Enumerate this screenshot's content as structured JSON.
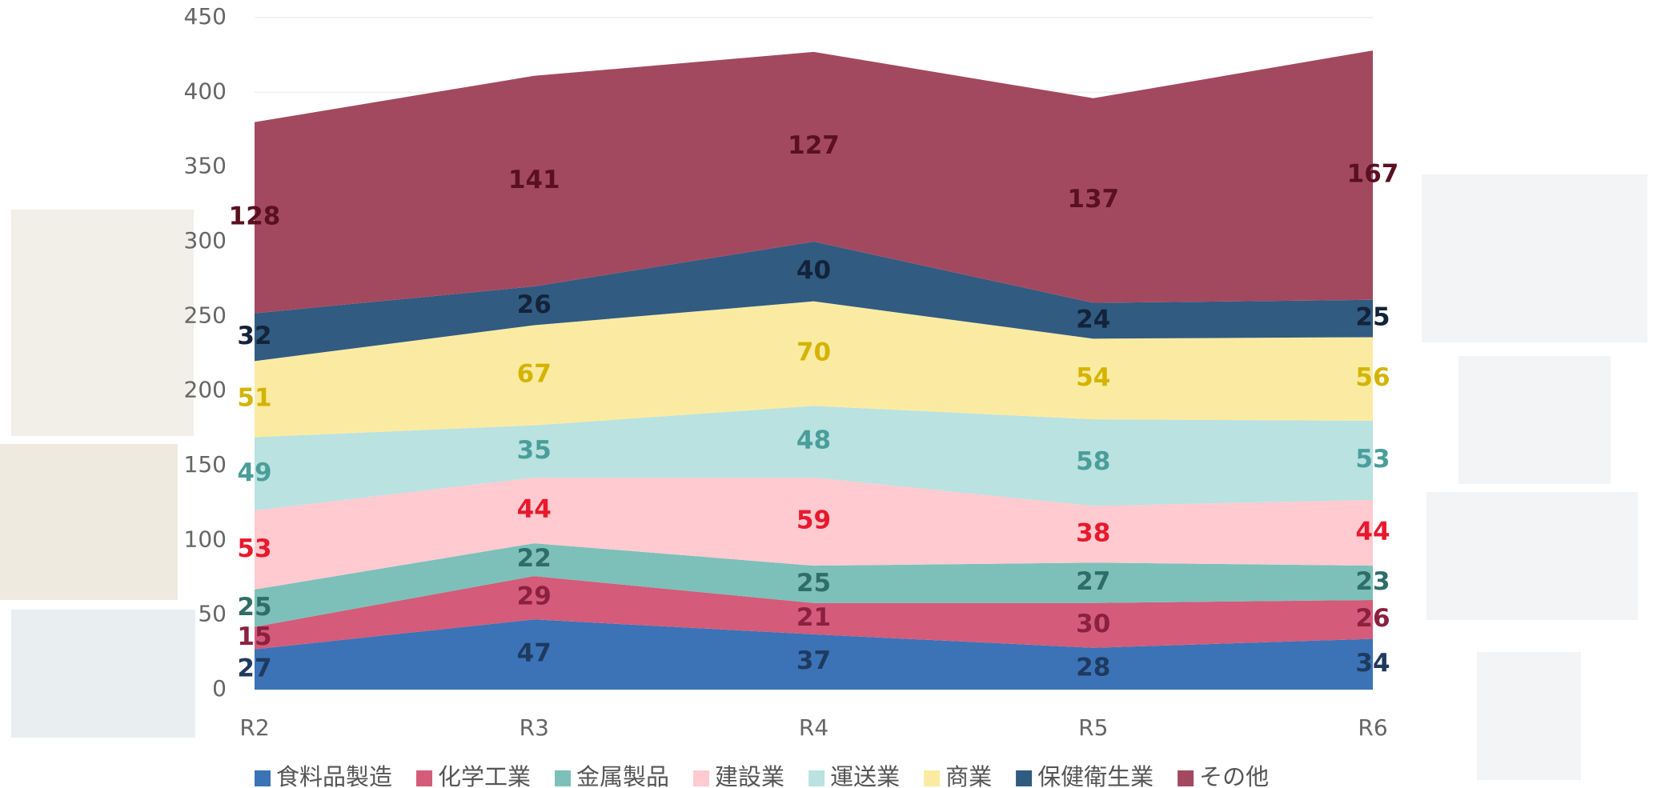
{
  "chart_data": {
    "type": "stacked_area",
    "categories": [
      "R2",
      "R3",
      "R4",
      "R5",
      "R6"
    ],
    "series": [
      {
        "name": "食料品製造",
        "color": "#3b73b6",
        "label_color": "#1f3a5f",
        "values": [
          27,
          47,
          37,
          28,
          34
        ]
      },
      {
        "name": "化学工業",
        "color": "#d45b79",
        "label_color": "#8b2040",
        "values": [
          15,
          29,
          21,
          30,
          26
        ]
      },
      {
        "name": "金属製品",
        "color": "#7cc0b9",
        "label_color": "#2f6d68",
        "values": [
          25,
          22,
          25,
          27,
          23
        ]
      },
      {
        "name": "建設業",
        "color": "#ffcad0",
        "label_color": "#e8192c",
        "values": [
          53,
          44,
          59,
          38,
          44
        ]
      },
      {
        "name": "運送業",
        "color": "#b9e2e1",
        "label_color": "#4a9e9a",
        "values": [
          49,
          35,
          48,
          58,
          53
        ]
      },
      {
        "name": "商業",
        "color": "#fbeba2",
        "label_color": "#d4b400",
        "values": [
          51,
          67,
          70,
          54,
          56
        ]
      },
      {
        "name": "保健衛生業",
        "color": "#315b81",
        "label_color": "#13233a",
        "values": [
          32,
          26,
          40,
          24,
          25
        ]
      },
      {
        "name": "その他",
        "color": "#a2495f",
        "label_color": "#5a1020",
        "values": [
          128,
          141,
          127,
          137,
          167
        ]
      }
    ],
    "ylim": [
      0,
      450
    ],
    "yticks": [
      0,
      50,
      100,
      150,
      200,
      250,
      300,
      350,
      400,
      450
    ],
    "grid": true
  }
}
